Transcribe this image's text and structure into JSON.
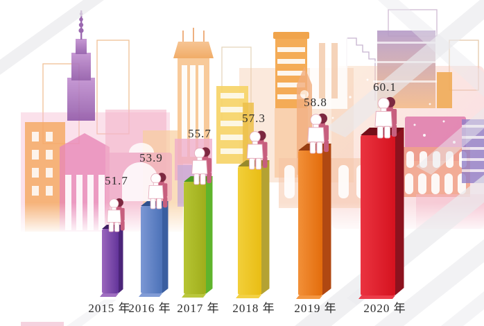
{
  "chart_data": {
    "type": "bar",
    "title": "",
    "categories": [
      "2015 年",
      "2016 年",
      "2017 年",
      "2018 年",
      "2019 年",
      "2020 年"
    ],
    "values": [
      51.7,
      53.9,
      55.7,
      57.3,
      58.8,
      60.1
    ],
    "value_labels": [
      "51.7",
      "53.9",
      "55.7",
      "57.3",
      "58.8",
      "60.1"
    ],
    "xlabel": "",
    "ylabel": "",
    "grid": false,
    "axes_shown": false,
    "legend": [],
    "annotation_style": "numeric value above a person icon standing on each 3D pillar",
    "bar_colors": [
      {
        "front_light": "#9a66bd",
        "front": "#63349a",
        "side": "#4b2579",
        "top": "#3e1f63"
      },
      {
        "front_light": "#7b97d4",
        "front": "#4c72b8",
        "side": "#3a5ea0",
        "top": "#30508c"
      },
      {
        "front_light": "#b6c433",
        "front": "#9fae1b",
        "side": "#5fb42c",
        "top": "#4d9a24"
      },
      {
        "front_light": "#f2cf3a",
        "front": "#e9bd14",
        "side": "#b4a233",
        "top": "#98892b"
      },
      {
        "front_light": "#f29038",
        "front": "#e36c0c",
        "side": "#b04812",
        "top": "#963b10"
      },
      {
        "front_light": "#ea3340",
        "front": "#d5121f",
        "side": "#8c121e",
        "top": "#740e19"
      }
    ],
    "figure_colors": {
      "front": "#ffffff",
      "outline": "#e4a9ba",
      "back": "#c75f7e",
      "head_back": "#7c2840"
    },
    "label_color": "#2b2b2b",
    "background_style": "watercolor city skyline in pink/orange/purple with gray diagonal ribbons"
  }
}
